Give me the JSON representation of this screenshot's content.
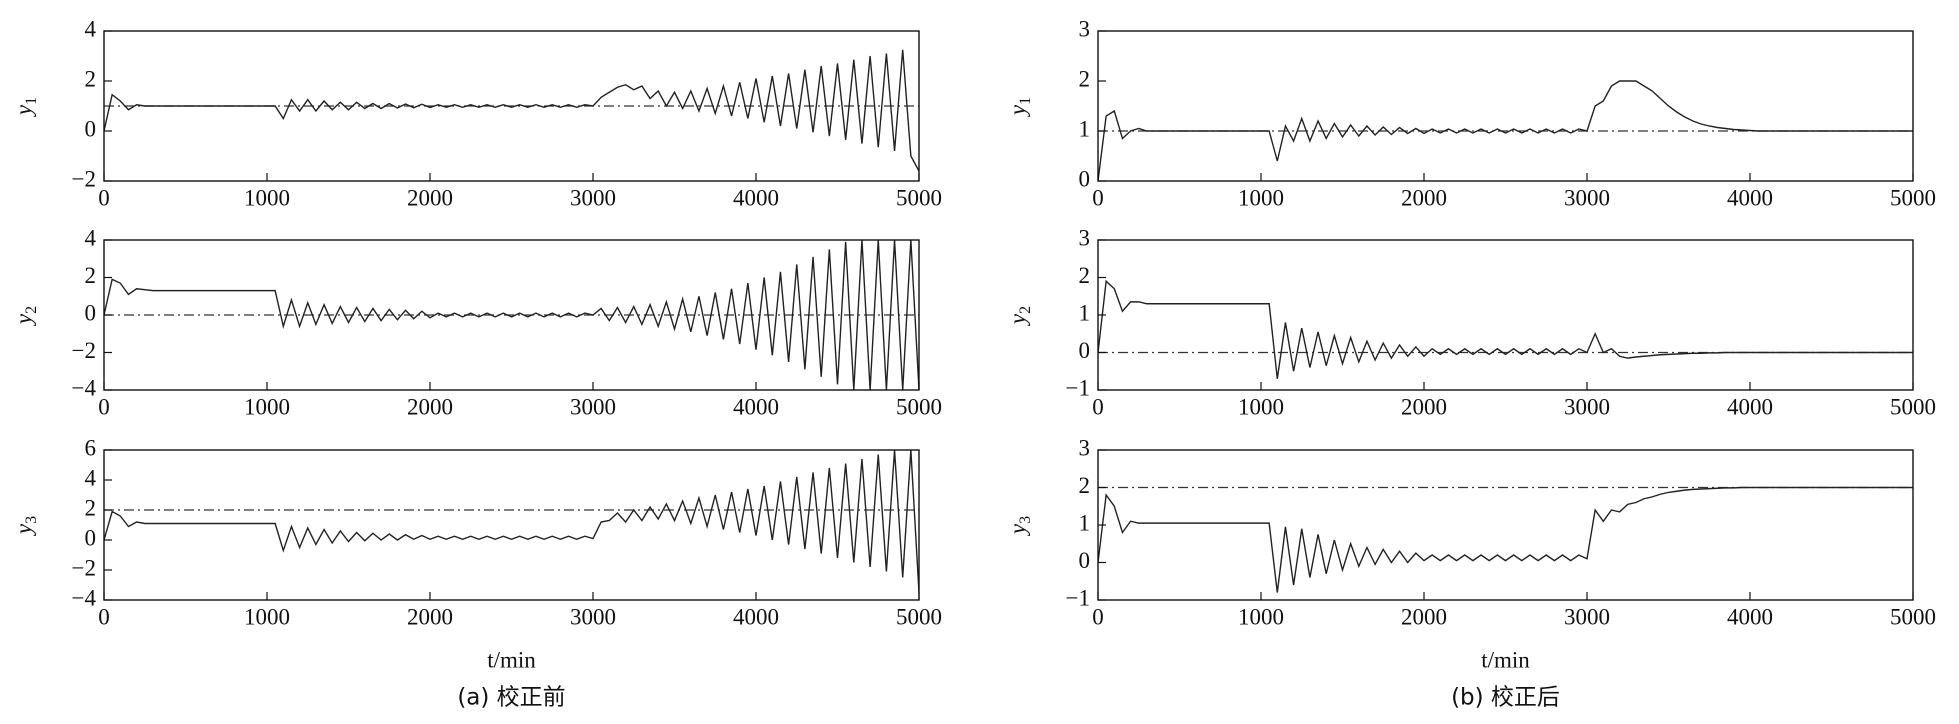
{
  "chart_data": [
    {
      "type": "line",
      "ylabel": "y",
      "ylabel_sub": "1",
      "setpoint": 1,
      "color": "#222222",
      "xlim": [
        0,
        5000
      ],
      "xticks": [
        0,
        1000,
        2000,
        3000,
        4000,
        5000
      ],
      "ylim": [
        -2,
        4
      ],
      "yticks": [
        {
          "value": -2,
          "label": "−2"
        },
        0,
        2,
        4
      ],
      "x": [
        0,
        50,
        100,
        150,
        200,
        250,
        300,
        350,
        400,
        450,
        500,
        550,
        600,
        650,
        700,
        750,
        800,
        850,
        900,
        950,
        1000,
        1050,
        1100,
        1150,
        1200,
        1250,
        1300,
        1350,
        1400,
        1450,
        1500,
        1550,
        1600,
        1650,
        1700,
        1750,
        1800,
        1850,
        1900,
        1950,
        2000,
        2050,
        2100,
        2150,
        2200,
        2250,
        2300,
        2350,
        2400,
        2450,
        2500,
        2550,
        2600,
        2650,
        2700,
        2750,
        2800,
        2850,
        2900,
        2950,
        3000,
        3050,
        3100,
        3150,
        3200,
        3250,
        3300,
        3350,
        3400,
        3450,
        3500,
        3550,
        3600,
        3650,
        3700,
        3750,
        3800,
        3850,
        3900,
        3950,
        4000,
        4050,
        4100,
        4150,
        4200,
        4250,
        4300,
        4350,
        4400,
        4450,
        4500,
        4550,
        4600,
        4650,
        4700,
        4750,
        4800,
        4850,
        4900,
        4950,
        5000
      ],
      "values": [
        0,
        1.45,
        1.2,
        0.85,
        1.05,
        1.0,
        1,
        1,
        1,
        1,
        1,
        1,
        1,
        1,
        1,
        1,
        1,
        1,
        1,
        1,
        1,
        1,
        0.5,
        1.25,
        0.8,
        1.25,
        0.8,
        1.2,
        0.85,
        1.15,
        0.85,
        1.15,
        0.9,
        1.1,
        0.9,
        1.1,
        0.92,
        1.08,
        0.93,
        1.07,
        0.94,
        1.05,
        0.95,
        1.05,
        0.95,
        1.05,
        0.95,
        1.05,
        0.95,
        1.05,
        0.95,
        1.05,
        0.95,
        1.05,
        0.95,
        1.05,
        0.95,
        1.05,
        0.95,
        1.05,
        1,
        1.35,
        1.55,
        1.75,
        1.85,
        1.65,
        1.8,
        1.3,
        1.6,
        1.0,
        1.55,
        0.9,
        1.6,
        0.8,
        1.7,
        0.7,
        1.8,
        0.6,
        1.95,
        0.5,
        2.1,
        0.35,
        2.2,
        0.2,
        2.3,
        0.1,
        2.45,
        -0.05,
        2.6,
        -0.2,
        2.7,
        -0.35,
        2.85,
        -0.5,
        3.0,
        -0.65,
        3.1,
        -0.8,
        3.25,
        -1.0,
        -1.6
      ]
    },
    {
      "type": "line",
      "ylabel": "y",
      "ylabel_sub": "2",
      "setpoint": 0,
      "color": "#222222",
      "xlim": [
        0,
        5000
      ],
      "xticks": [
        0,
        1000,
        2000,
        3000,
        4000,
        5000
      ],
      "ylim": [
        -4,
        4
      ],
      "yticks": [
        {
          "value": -4,
          "label": "−4"
        },
        {
          "value": -2,
          "label": "−2"
        },
        0,
        2,
        4
      ],
      "x": [
        0,
        50,
        100,
        150,
        200,
        250,
        300,
        350,
        400,
        450,
        500,
        550,
        600,
        650,
        700,
        750,
        800,
        850,
        900,
        950,
        1000,
        1050,
        1100,
        1150,
        1200,
        1250,
        1300,
        1350,
        1400,
        1450,
        1500,
        1550,
        1600,
        1650,
        1700,
        1750,
        1800,
        1850,
        1900,
        1950,
        2000,
        2050,
        2100,
        2150,
        2200,
        2250,
        2300,
        2350,
        2400,
        2450,
        2500,
        2550,
        2600,
        2650,
        2700,
        2750,
        2800,
        2850,
        2900,
        2950,
        3000,
        3050,
        3100,
        3150,
        3200,
        3250,
        3300,
        3350,
        3400,
        3450,
        3500,
        3550,
        3600,
        3650,
        3700,
        3750,
        3800,
        3850,
        3900,
        3950,
        4000,
        4050,
        4100,
        4150,
        4200,
        4250,
        4300,
        4350,
        4400,
        4450,
        4500,
        4550,
        4600,
        4650,
        4700,
        4750,
        4800,
        4850,
        4900,
        4950,
        5000
      ],
      "values": [
        0,
        1.9,
        1.7,
        1.1,
        1.4,
        1.35,
        1.3,
        1.3,
        1.3,
        1.3,
        1.3,
        1.3,
        1.3,
        1.3,
        1.3,
        1.3,
        1.3,
        1.3,
        1.3,
        1.3,
        1.3,
        1.3,
        -0.6,
        0.8,
        -0.6,
        0.65,
        -0.5,
        0.55,
        -0.45,
        0.45,
        -0.4,
        0.4,
        -0.35,
        0.35,
        -0.3,
        0.3,
        -0.25,
        0.25,
        -0.2,
        0.2,
        -0.15,
        0.1,
        -0.1,
        0.1,
        -0.1,
        0.1,
        -0.1,
        0.1,
        -0.1,
        0.1,
        -0.1,
        0.1,
        -0.1,
        0.1,
        -0.1,
        0.1,
        -0.1,
        0.1,
        -0.1,
        0.1,
        0,
        0.35,
        -0.3,
        0.4,
        -0.4,
        0.45,
        -0.5,
        0.55,
        -0.6,
        0.7,
        -0.75,
        0.85,
        -0.9,
        1.0,
        -1.1,
        1.2,
        -1.3,
        1.4,
        -1.55,
        1.7,
        -1.85,
        2.0,
        -2.15,
        2.3,
        -2.5,
        2.7,
        -2.9,
        3.1,
        -3.3,
        3.5,
        -3.7,
        3.9,
        -4.0,
        4.0,
        -4.0,
        4.0,
        -4.0,
        4.0,
        -4.0,
        4.0,
        -4.0
      ]
    },
    {
      "type": "line",
      "ylabel": "y",
      "ylabel_sub": "3",
      "setpoint": 2,
      "color": "#222222",
      "xlim": [
        0,
        5000
      ],
      "xticks": [
        0,
        1000,
        2000,
        3000,
        4000,
        5000
      ],
      "ylim": [
        -4,
        6
      ],
      "yticks": [
        {
          "value": -4,
          "label": "−4"
        },
        {
          "value": -2,
          "label": "−2"
        },
        0,
        2,
        4,
        6
      ],
      "xlabel": "t/min",
      "caption": "(a) 校正前",
      "x": [
        0,
        50,
        100,
        150,
        200,
        250,
        300,
        350,
        400,
        450,
        500,
        550,
        600,
        650,
        700,
        750,
        800,
        850,
        900,
        950,
        1000,
        1050,
        1100,
        1150,
        1200,
        1250,
        1300,
        1350,
        1400,
        1450,
        1500,
        1550,
        1600,
        1650,
        1700,
        1750,
        1800,
        1850,
        1900,
        1950,
        2000,
        2050,
        2100,
        2150,
        2200,
        2250,
        2300,
        2350,
        2400,
        2450,
        2500,
        2550,
        2600,
        2650,
        2700,
        2750,
        2800,
        2850,
        2900,
        2950,
        3000,
        3050,
        3100,
        3150,
        3200,
        3250,
        3300,
        3350,
        3400,
        3450,
        3500,
        3550,
        3600,
        3650,
        3700,
        3750,
        3800,
        3850,
        3900,
        3950,
        4000,
        4050,
        4100,
        4150,
        4200,
        4250,
        4300,
        4350,
        4400,
        4450,
        4500,
        4550,
        4600,
        4650,
        4700,
        4750,
        4800,
        4850,
        4900,
        4950,
        5000
      ],
      "values": [
        0,
        1.9,
        1.6,
        0.9,
        1.2,
        1.1,
        1.1,
        1.1,
        1.1,
        1.1,
        1.1,
        1.1,
        1.1,
        1.1,
        1.1,
        1.1,
        1.1,
        1.1,
        1.1,
        1.1,
        1.1,
        1.1,
        -0.7,
        0.9,
        -0.5,
        0.8,
        -0.3,
        0.7,
        -0.2,
        0.6,
        -0.1,
        0.5,
        -0.05,
        0.45,
        0,
        0.4,
        0,
        0.35,
        0.05,
        0.3,
        0.05,
        0.25,
        0.05,
        0.25,
        0.05,
        0.25,
        0.05,
        0.25,
        0.05,
        0.25,
        0.05,
        0.25,
        0.05,
        0.25,
        0.05,
        0.25,
        0.05,
        0.25,
        0.05,
        0.25,
        0.1,
        1.2,
        1.3,
        1.8,
        1.2,
        2.0,
        1.3,
        2.2,
        1.4,
        2.4,
        1.3,
        2.6,
        1.1,
        2.8,
        0.9,
        3.0,
        0.7,
        3.2,
        0.5,
        3.4,
        0.3,
        3.6,
        0,
        3.9,
        -0.3,
        4.2,
        -0.6,
        4.5,
        -0.9,
        4.8,
        -1.2,
        5.1,
        -1.5,
        5.4,
        -1.8,
        5.7,
        -2.1,
        6.0,
        -2.5,
        6.0,
        -3.5
      ]
    },
    {
      "type": "line",
      "ylabel": "y",
      "ylabel_sub": "1",
      "setpoint": 1,
      "color": "#222222",
      "xlim": [
        0,
        5000
      ],
      "xticks": [
        0,
        1000,
        2000,
        3000,
        4000,
        5000
      ],
      "ylim": [
        0,
        3
      ],
      "yticks": [
        0,
        1,
        2,
        3
      ],
      "x": [
        0,
        50,
        100,
        150,
        200,
        250,
        300,
        350,
        400,
        450,
        500,
        550,
        600,
        650,
        700,
        750,
        800,
        850,
        900,
        950,
        1000,
        1050,
        1100,
        1150,
        1200,
        1250,
        1300,
        1350,
        1400,
        1450,
        1500,
        1550,
        1600,
        1650,
        1700,
        1750,
        1800,
        1850,
        1900,
        1950,
        2000,
        2050,
        2100,
        2150,
        2200,
        2250,
        2300,
        2350,
        2400,
        2450,
        2500,
        2550,
        2600,
        2650,
        2700,
        2750,
        2800,
        2850,
        2900,
        2950,
        3000,
        3050,
        3100,
        3150,
        3200,
        3250,
        3300,
        3350,
        3400,
        3450,
        3500,
        3550,
        3600,
        3650,
        3700,
        3750,
        3800,
        3850,
        3900,
        3950,
        4000,
        4050,
        4100,
        4150,
        4200,
        4250,
        4300,
        4350,
        4400,
        4450,
        4500,
        4550,
        4600,
        4650,
        4700,
        4750,
        4800,
        4850,
        4900,
        4950,
        5000
      ],
      "values": [
        0,
        1.3,
        1.4,
        0.85,
        1.0,
        1.05,
        1,
        1,
        1,
        1,
        1,
        1,
        1,
        1,
        1,
        1,
        1,
        1,
        1,
        1,
        1,
        1,
        0.4,
        1.1,
        0.8,
        1.25,
        0.8,
        1.2,
        0.85,
        1.15,
        0.88,
        1.12,
        0.9,
        1.1,
        0.92,
        1.08,
        0.93,
        1.07,
        0.95,
        1.05,
        0.95,
        1.04,
        0.96,
        1.04,
        0.96,
        1.04,
        0.96,
        1.04,
        0.96,
        1.04,
        0.96,
        1.04,
        0.96,
        1.04,
        0.96,
        1.04,
        0.96,
        1.04,
        0.96,
        1.04,
        1.0,
        1.5,
        1.6,
        1.9,
        2.0,
        2.0,
        2.0,
        1.9,
        1.8,
        1.65,
        1.5,
        1.38,
        1.28,
        1.2,
        1.14,
        1.1,
        1.07,
        1.05,
        1.03,
        1.02,
        1.01,
        1,
        1,
        1,
        1,
        1,
        1,
        1,
        1,
        1,
        1,
        1,
        1,
        1,
        1,
        1,
        1,
        1,
        1,
        1,
        1
      ]
    },
    {
      "type": "line",
      "ylabel": "y",
      "ylabel_sub": "2",
      "setpoint": 0,
      "color": "#222222",
      "xlim": [
        0,
        5000
      ],
      "xticks": [
        0,
        1000,
        2000,
        3000,
        4000,
        5000
      ],
      "ylim": [
        -1,
        3
      ],
      "yticks": [
        {
          "value": -1,
          "label": "−1"
        },
        0,
        1,
        2,
        3
      ],
      "x": [
        0,
        50,
        100,
        150,
        200,
        250,
        300,
        350,
        400,
        450,
        500,
        550,
        600,
        650,
        700,
        750,
        800,
        850,
        900,
        950,
        1000,
        1050,
        1100,
        1150,
        1200,
        1250,
        1300,
        1350,
        1400,
        1450,
        1500,
        1550,
        1600,
        1650,
        1700,
        1750,
        1800,
        1850,
        1900,
        1950,
        2000,
        2050,
        2100,
        2150,
        2200,
        2250,
        2300,
        2350,
        2400,
        2450,
        2500,
        2550,
        2600,
        2650,
        2700,
        2750,
        2800,
        2850,
        2900,
        2950,
        3000,
        3050,
        3100,
        3150,
        3200,
        3250,
        3300,
        3350,
        3400,
        3450,
        3500,
        3550,
        3600,
        3650,
        3700,
        3750,
        3800,
        3850,
        3900,
        3950,
        4000,
        4050,
        4100,
        4150,
        4200,
        4250,
        4300,
        4350,
        4400,
        4450,
        4500,
        4550,
        4600,
        4650,
        4700,
        4750,
        4800,
        4850,
        4900,
        4950,
        5000
      ],
      "values": [
        0,
        1.9,
        1.7,
        1.1,
        1.35,
        1.35,
        1.3,
        1.3,
        1.3,
        1.3,
        1.3,
        1.3,
        1.3,
        1.3,
        1.3,
        1.3,
        1.3,
        1.3,
        1.3,
        1.3,
        1.3,
        1.3,
        -0.7,
        0.8,
        -0.5,
        0.65,
        -0.4,
        0.55,
        -0.35,
        0.45,
        -0.3,
        0.4,
        -0.25,
        0.3,
        -0.2,
        0.25,
        -0.15,
        0.2,
        -0.1,
        0.15,
        -0.1,
        0.1,
        -0.05,
        0.1,
        -0.05,
        0.1,
        -0.05,
        0.1,
        -0.05,
        0.1,
        -0.05,
        0.1,
        -0.05,
        0.1,
        -0.05,
        0.1,
        -0.05,
        0.1,
        -0.05,
        0.1,
        0,
        0.5,
        0,
        0.1,
        -0.1,
        -0.15,
        -0.12,
        -0.1,
        -0.08,
        -0.06,
        -0.05,
        -0.04,
        -0.03,
        -0.02,
        -0.02,
        -0.01,
        -0.01,
        0,
        0,
        0,
        0,
        0,
        0,
        0,
        0,
        0,
        0,
        0,
        0,
        0,
        0,
        0,
        0,
        0,
        0,
        0,
        0,
        0,
        0,
        0,
        0
      ]
    },
    {
      "type": "line",
      "ylabel": "y",
      "ylabel_sub": "3",
      "setpoint": 2,
      "color": "#222222",
      "xlim": [
        0,
        5000
      ],
      "xticks": [
        0,
        1000,
        2000,
        3000,
        4000,
        5000
      ],
      "ylim": [
        -1,
        3
      ],
      "yticks": [
        {
          "value": -1,
          "label": "−1"
        },
        0,
        1,
        2,
        3
      ],
      "xlabel": "t/min",
      "caption": "(b) 校正后",
      "x": [
        0,
        50,
        100,
        150,
        200,
        250,
        300,
        350,
        400,
        450,
        500,
        550,
        600,
        650,
        700,
        750,
        800,
        850,
        900,
        950,
        1000,
        1050,
        1100,
        1150,
        1200,
        1250,
        1300,
        1350,
        1400,
        1450,
        1500,
        1550,
        1600,
        1650,
        1700,
        1750,
        1800,
        1850,
        1900,
        1950,
        2000,
        2050,
        2100,
        2150,
        2200,
        2250,
        2300,
        2350,
        2400,
        2450,
        2500,
        2550,
        2600,
        2650,
        2700,
        2750,
        2800,
        2850,
        2900,
        2950,
        3000,
        3050,
        3100,
        3150,
        3200,
        3250,
        3300,
        3350,
        3400,
        3450,
        3500,
        3550,
        3600,
        3650,
        3700,
        3750,
        3800,
        3850,
        3900,
        3950,
        4000,
        4050,
        4100,
        4150,
        4200,
        4250,
        4300,
        4350,
        4400,
        4450,
        4500,
        4550,
        4600,
        4650,
        4700,
        4750,
        4800,
        4850,
        4900,
        4950,
        5000
      ],
      "values": [
        0,
        1.8,
        1.5,
        0.8,
        1.1,
        1.05,
        1.05,
        1.05,
        1.05,
        1.05,
        1.05,
        1.05,
        1.05,
        1.05,
        1.05,
        1.05,
        1.05,
        1.05,
        1.05,
        1.05,
        1.05,
        1.05,
        -0.8,
        0.95,
        -0.6,
        0.9,
        -0.4,
        0.75,
        -0.3,
        0.6,
        -0.2,
        0.5,
        -0.1,
        0.4,
        -0.05,
        0.35,
        0,
        0.3,
        0,
        0.25,
        0.05,
        0.2,
        0.05,
        0.2,
        0.05,
        0.2,
        0.05,
        0.2,
        0.05,
        0.2,
        0.05,
        0.2,
        0.05,
        0.2,
        0.05,
        0.2,
        0.05,
        0.2,
        0.05,
        0.2,
        0.1,
        1.4,
        1.1,
        1.4,
        1.35,
        1.55,
        1.6,
        1.7,
        1.75,
        1.82,
        1.87,
        1.9,
        1.93,
        1.95,
        1.96,
        1.97,
        1.98,
        1.99,
        1.99,
        2.0,
        2.0,
        2,
        2,
        2,
        2,
        2,
        2,
        2,
        2,
        2,
        2,
        2,
        2,
        2,
        2,
        2,
        2,
        2,
        2,
        2,
        2
      ]
    }
  ]
}
